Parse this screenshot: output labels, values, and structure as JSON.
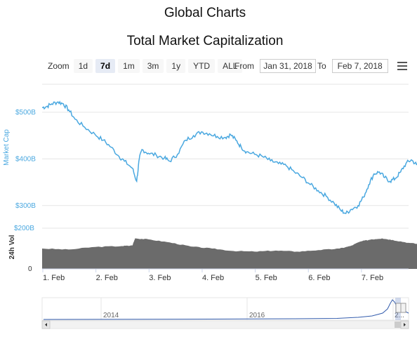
{
  "page": {
    "title": "Global Charts"
  },
  "toolbar": {
    "zoom_label": "Zoom",
    "zoom_options": [
      "1d",
      "7d",
      "1m",
      "3m",
      "1y",
      "YTD",
      "ALL"
    ],
    "active_zoom": "7d",
    "from_label": "From",
    "from_value": "Jan 31, 2018",
    "to_label": "To",
    "to_value": "Feb 7, 2018",
    "menu_icon": "hamburger-menu-icon"
  },
  "colors": {
    "market_cap": "#4aa8e0",
    "volume": "#6b6b6b",
    "navigator": "#335cad"
  },
  "chart_data": {
    "type": "line",
    "title": "Total Market Capitalization",
    "x": {
      "tick_labels": [
        "1. Feb",
        "2. Feb",
        "3. Feb",
        "4. Feb",
        "5. Feb",
        "6. Feb",
        "7. Feb"
      ],
      "range_days": [
        0,
        6.9
      ]
    },
    "market_cap": {
      "ylabel": "Market Cap",
      "tick_labels": [
        "$300B",
        "$400B",
        "$500B"
      ],
      "tick_values": [
        300,
        400,
        500
      ],
      "ylim": [
        262,
        560
      ],
      "points": [
        [
          0.0,
          510
        ],
        [
          0.08,
          512
        ],
        [
          0.18,
          518
        ],
        [
          0.3,
          522
        ],
        [
          0.4,
          518
        ],
        [
          0.5,
          505
        ],
        [
          0.62,
          485
        ],
        [
          0.8,
          468
        ],
        [
          1.0,
          452
        ],
        [
          1.15,
          440
        ],
        [
          1.3,
          425
        ],
        [
          1.45,
          405
        ],
        [
          1.55,
          395
        ],
        [
          1.7,
          380
        ],
        [
          1.78,
          352
        ],
        [
          1.83,
          400
        ],
        [
          1.88,
          420
        ],
        [
          2.0,
          412
        ],
        [
          2.15,
          408
        ],
        [
          2.3,
          402
        ],
        [
          2.4,
          395
        ],
        [
          2.55,
          410
        ],
        [
          2.7,
          440
        ],
        [
          2.85,
          450
        ],
        [
          3.0,
          458
        ],
        [
          3.15,
          454
        ],
        [
          3.3,
          448
        ],
        [
          3.45,
          446
        ],
        [
          3.55,
          452
        ],
        [
          3.65,
          440
        ],
        [
          3.75,
          425
        ],
        [
          3.85,
          415
        ],
        [
          4.0,
          410
        ],
        [
          4.15,
          405
        ],
        [
          4.3,
          396
        ],
        [
          4.45,
          390
        ],
        [
          4.6,
          385
        ],
        [
          4.75,
          372
        ],
        [
          4.9,
          360
        ],
        [
          5.05,
          345
        ],
        [
          5.2,
          332
        ],
        [
          5.35,
          320
        ],
        [
          5.5,
          305
        ],
        [
          5.62,
          290
        ],
        [
          5.72,
          283
        ],
        [
          5.82,
          292
        ],
        [
          5.95,
          300
        ],
        [
          6.05,
          318
        ],
        [
          6.15,
          345
        ],
        [
          6.25,
          368
        ],
        [
          6.35,
          372
        ],
        [
          6.45,
          360
        ],
        [
          6.55,
          352
        ],
        [
          6.65,
          358
        ],
        [
          6.75,
          372
        ],
        [
          6.85,
          390
        ],
        [
          6.95,
          398
        ],
        [
          7.05,
          388
        ],
        [
          7.15,
          384
        ]
      ]
    },
    "volume": {
      "ylabel": "24h Vol",
      "tick_labels": [
        "0",
        "$200B"
      ],
      "tick_values": [
        0,
        200
      ],
      "ylim": [
        0,
        200
      ],
      "points": [
        [
          0.0,
          100
        ],
        [
          0.5,
          95
        ],
        [
          1.0,
          108
        ],
        [
          1.5,
          112
        ],
        [
          1.7,
          115
        ],
        [
          1.75,
          150
        ],
        [
          2.0,
          145
        ],
        [
          2.4,
          130
        ],
        [
          2.8,
          110
        ],
        [
          3.2,
          100
        ],
        [
          3.6,
          88
        ],
        [
          4.0,
          85
        ],
        [
          4.4,
          90
        ],
        [
          4.8,
          85
        ],
        [
          5.2,
          92
        ],
        [
          5.6,
          100
        ],
        [
          5.8,
          112
        ],
        [
          6.0,
          135
        ],
        [
          6.2,
          145
        ],
        [
          6.4,
          150
        ],
        [
          6.6,
          142
        ],
        [
          6.9,
          128
        ],
        [
          7.15,
          120
        ]
      ]
    },
    "navigator": {
      "tick_labels": [
        "2014",
        "2016",
        "2..."
      ]
    }
  }
}
